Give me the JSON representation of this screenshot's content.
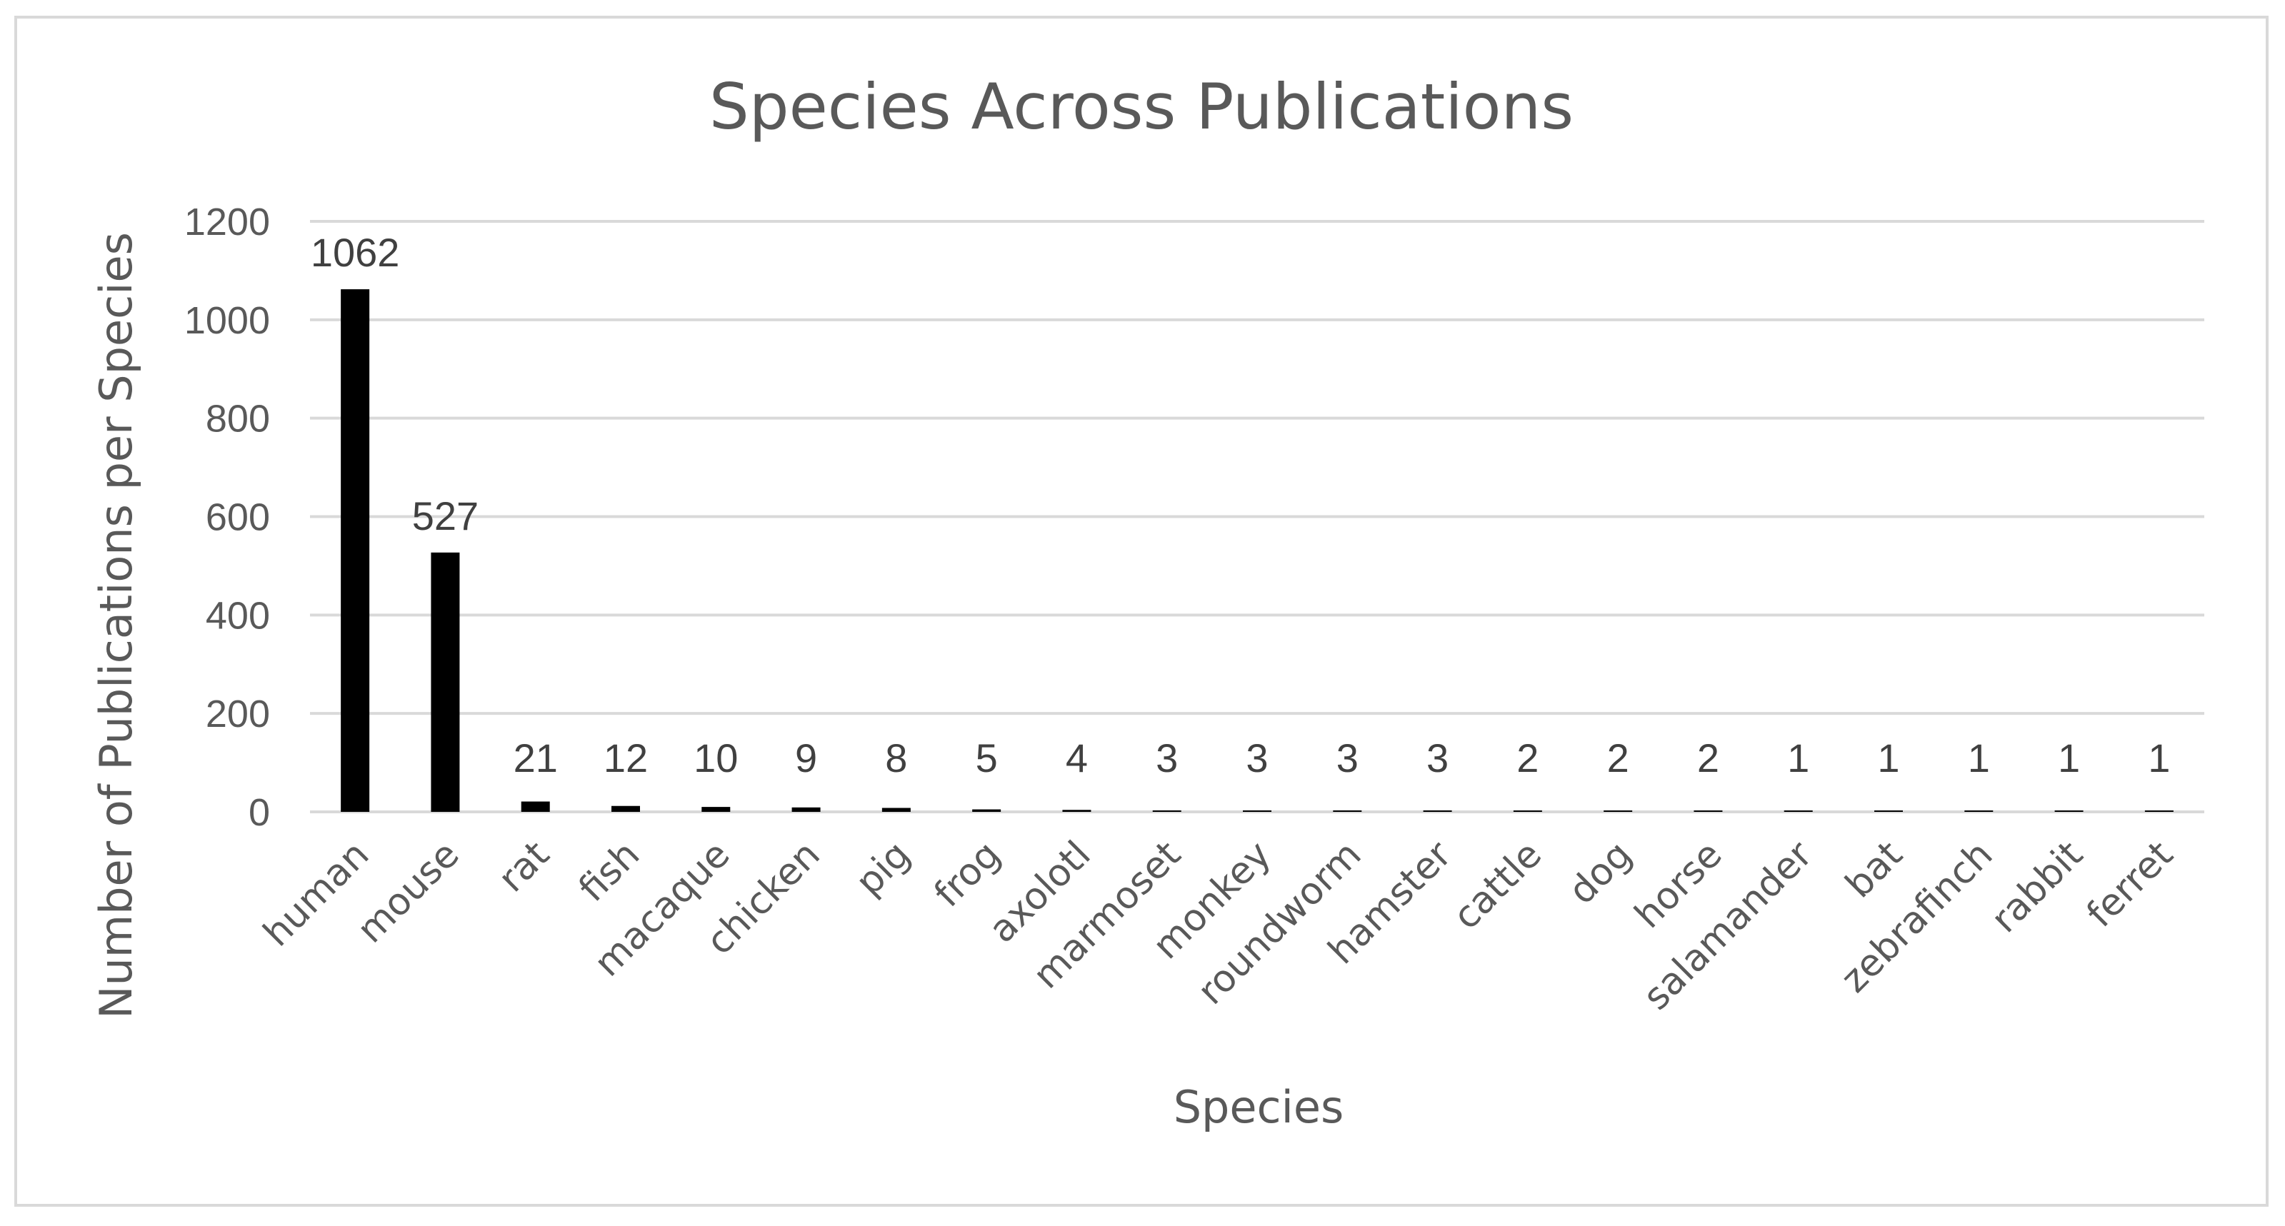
{
  "chart_data": {
    "type": "bar",
    "title": "Species Across Publications",
    "xlabel": "Species",
    "ylabel": "Number of Publications per Species",
    "ylim": [
      0,
      1200
    ],
    "yticks": [
      "0",
      "200",
      "400",
      "600",
      "800",
      "1000",
      "1200"
    ],
    "grid": true,
    "legend": "none",
    "bar_color": "#000000",
    "categories": [
      "human",
      "mouse",
      "rat",
      "fish",
      "macaque",
      "chicken",
      "pig",
      "frog",
      "axolotl",
      "marmoset",
      "monkey",
      "roundworm",
      "hamster",
      "cattle",
      "dog",
      "horse",
      "salamander",
      "bat",
      "zebrafinch",
      "rabbit",
      "ferret"
    ],
    "values": [
      1062,
      527,
      21,
      12,
      10,
      9,
      8,
      5,
      4,
      3,
      3,
      3,
      3,
      2,
      2,
      2,
      1,
      1,
      1,
      1,
      1
    ]
  }
}
